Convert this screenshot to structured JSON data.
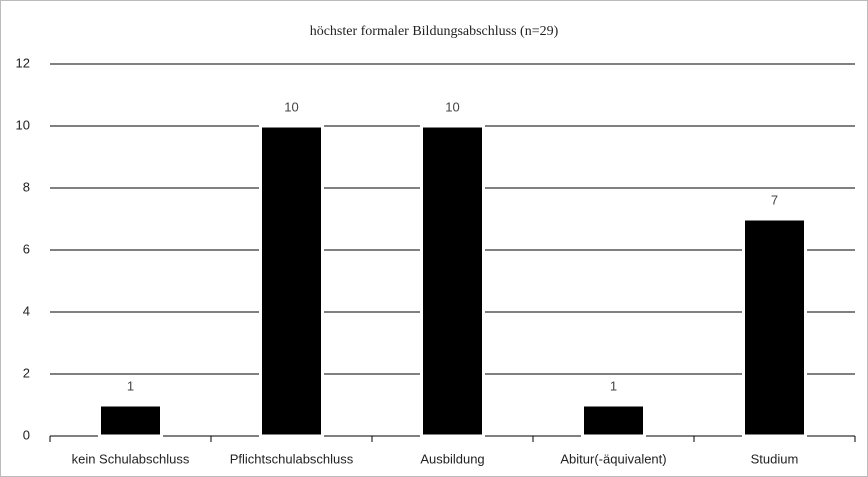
{
  "chart_data": {
    "type": "bar",
    "title": "höchster formaler Bildungsabschluss (n=29)",
    "categories": [
      "kein Schulabschluss",
      "Pflichtschulabschluss",
      "Ausbildung",
      "Abitur(-äquivalent)",
      "Studium"
    ],
    "values": [
      1,
      10,
      10,
      1,
      7
    ],
    "color": "#000000",
    "ylim": [
      0,
      12
    ],
    "yticks": [
      0,
      2,
      4,
      6,
      8,
      10,
      12
    ],
    "grid": true,
    "data_labels": true
  }
}
